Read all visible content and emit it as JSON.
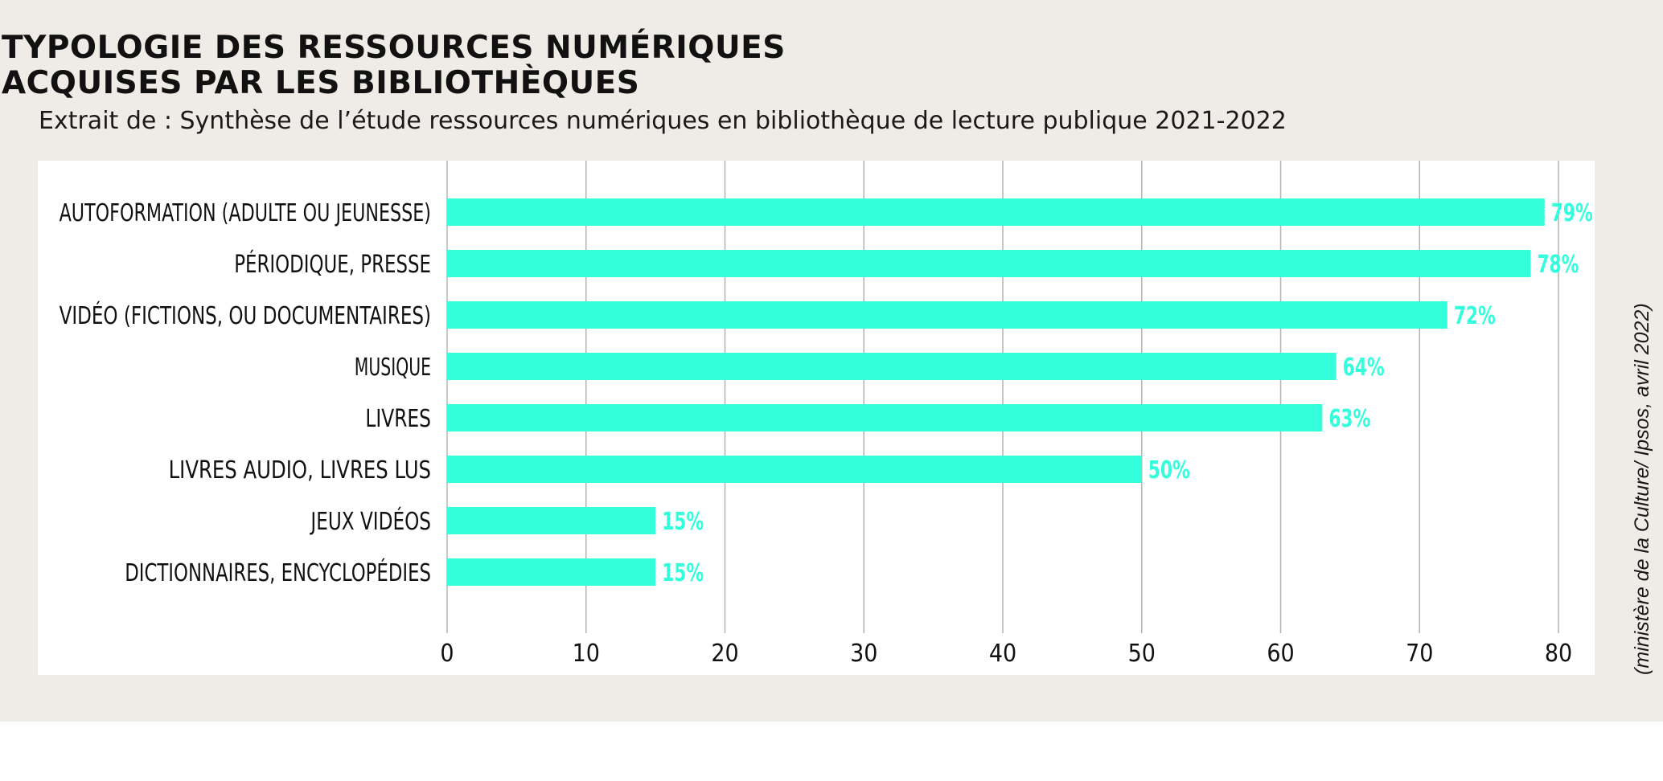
{
  "header": {
    "title_line1": "TYPOLOGIE DES RESSOURCES NUMÉRIQUES",
    "title_line2": "ACQUISES PAR LES BIBLIOTHÈQUES",
    "subtitle": "Extrait de : Synthèse de l’étude ressources numériques en bibliothèque de lecture publique 2021-2022"
  },
  "source": "(ministère de la Culture/ Ipsos, avril 2022)",
  "colors": {
    "bar": "#33ffdd",
    "label": "#33ffdd",
    "grid": "#b8b2ab",
    "panel": "#efece8",
    "text": "#111111"
  },
  "chart_data": {
    "type": "bar",
    "orientation": "horizontal",
    "categories": [
      "AUTOFORMATION (ADULTE OU JEUNESSE)",
      "PÉRIODIQUE, PRESSE",
      "VIDÉO (FICTIONS, OU DOCUMENTAIRES)",
      "MUSIQUE",
      "LIVRES",
      "LIVRES AUDIO, LIVRES LUS",
      "JEUX VIDÉOS",
      "DICTIONNAIRES, ENCYCLOPÉDIES"
    ],
    "values": [
      79,
      78,
      72,
      64,
      63,
      50,
      15,
      15
    ],
    "value_labels": [
      "79%",
      "78%",
      "72%",
      "64%",
      "63%",
      "50%",
      "15%",
      "15%"
    ],
    "x_ticks": [
      "0",
      "10",
      "20",
      "30",
      "40",
      "50",
      "60",
      "70",
      "80"
    ],
    "xlim": [
      0,
      80
    ],
    "grid": true,
    "title": "TYPOLOGIE DES RESSOURCES NUMÉRIQUES ACQUISES PAR LES BIBLIOTHÈQUES",
    "xlabel": "",
    "ylabel": ""
  }
}
